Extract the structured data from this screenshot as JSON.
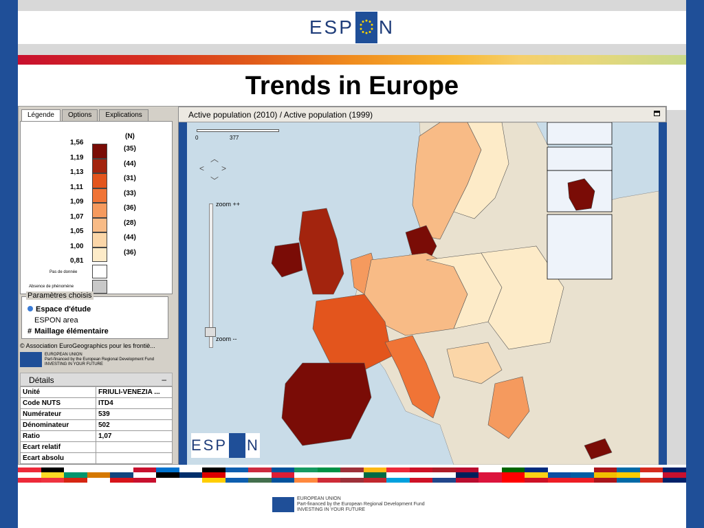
{
  "header": {
    "logo_left": "ESP",
    "logo_right": "N",
    "title": "Trends in Europe"
  },
  "tabs": [
    {
      "label": "Légende"
    },
    {
      "label": "Options"
    },
    {
      "label": "Explications"
    }
  ],
  "legend": {
    "count_header": "(N)",
    "values": [
      "1,56",
      "1,19",
      "1,13",
      "1,11",
      "1,09",
      "1,07",
      "1,05",
      "1,00",
      "0,81"
    ],
    "counts": [
      "(35)",
      "(44)",
      "(31)",
      "(33)",
      "(36)",
      "(28)",
      "(44)",
      "(36)"
    ],
    "colors": [
      "#7a0c06",
      "#a3240e",
      "#e3551d",
      "#f07436",
      "#f59a5e",
      "#f8bb86",
      "#fbd6a8",
      "#fdebc8"
    ],
    "no_data_label": "Pas de donnée",
    "no_data_color": "#ffffff",
    "absence_label": "Absence de phénomène",
    "absence_color": "#c8c8c8"
  },
  "params": {
    "title": "Paramètres choisis",
    "study_space": "Espace d'étude",
    "espon_area": "ESPON area",
    "grid": "Maillage élémentaire"
  },
  "credits": "© Association EuroGeographics pour les frontiè...",
  "eu_note": {
    "line1": "EUROPEAN UNION",
    "line2": "Part-financed by the European Regional Development Fund",
    "line3": "INVESTING IN YOUR FUTURE"
  },
  "details": {
    "title": "Détails",
    "minimize": "–",
    "rows": [
      {
        "key": "Unité",
        "value": "FRIULI-VENEZIA ..."
      },
      {
        "key": "Code NUTS",
        "value": "ITD4"
      },
      {
        "key": "Numérateur",
        "value": "539"
      },
      {
        "key": "Dénominateur",
        "value": "502"
      },
      {
        "key": "Ratio",
        "value": "1,07"
      },
      {
        "key": "Ecart relatif",
        "value": ""
      },
      {
        "key": "Ecart absolu",
        "value": ""
      }
    ]
  },
  "map": {
    "title": "Active population (2010) / Active population (1999)",
    "scale_start": "0",
    "scale_end": "377",
    "zoom_in": "zoom ++",
    "zoom_out": "zoom --"
  },
  "footer": {
    "line1": "EUROPEAN UNION",
    "line2": "Part-financed by the European Regional Development Fund",
    "line3": "INVESTING IN YOUR FUTURE"
  },
  "flags": [
    [
      "#ed2939",
      "#ffffff",
      "#ed2939"
    ],
    [
      "#000000",
      "#fdda24",
      "#ef3340"
    ],
    [
      "#ffffff",
      "#00966e",
      "#d62612"
    ],
    [
      "#ffffff",
      "#d57800",
      "#ffffff"
    ],
    [
      "#ffffff",
      "#11457e",
      "#d7141a"
    ],
    [
      "#c8102e",
      "#ffffff",
      "#c8102e"
    ],
    [
      "#0072ce",
      "#000000",
      "#ffffff"
    ],
    [
      "#ffffff",
      "#002f6c",
      "#ffffff"
    ],
    [
      "#000000",
      "#dd0000",
      "#ffce00"
    ],
    [
      "#0d5eaf",
      "#ffffff",
      "#0d5eaf"
    ],
    [
      "#cd2a3e",
      "#ffffff",
      "#436f4d"
    ],
    [
      "#02529c",
      "#dc1e35",
      "#02529c"
    ],
    [
      "#169b62",
      "#ffffff",
      "#ff883e"
    ],
    [
      "#009246",
      "#ffffff",
      "#ce2b37"
    ],
    [
      "#9e3039",
      "#ffffff",
      "#9e3039"
    ],
    [
      "#fdb913",
      "#006a44",
      "#c1272d"
    ],
    [
      "#ed2939",
      "#ffffff",
      "#00a1de"
    ],
    [
      "#ce1126",
      "#ffffff",
      "#ce1126"
    ],
    [
      "#ae1c28",
      "#ffffff",
      "#21468b"
    ],
    [
      "#ba0c2f",
      "#00205b",
      "#ba0c2f"
    ],
    [
      "#ffffff",
      "#dc143c",
      "#dc143c"
    ],
    [
      "#006600",
      "#ff0000",
      "#ff0000"
    ],
    [
      "#002b7f",
      "#fcd116",
      "#ce1126"
    ],
    [
      "#ffffff",
      "#0b4ea2",
      "#ee1c25"
    ],
    [
      "#ffffff",
      "#005da4",
      "#ed1c24"
    ],
    [
      "#aa151b",
      "#f1bf00",
      "#aa151b"
    ],
    [
      "#006aa7",
      "#fecc00",
      "#006aa7"
    ],
    [
      "#d52b1e",
      "#ffffff",
      "#d52b1e"
    ],
    [
      "#012169",
      "#c8102e",
      "#012169"
    ]
  ]
}
